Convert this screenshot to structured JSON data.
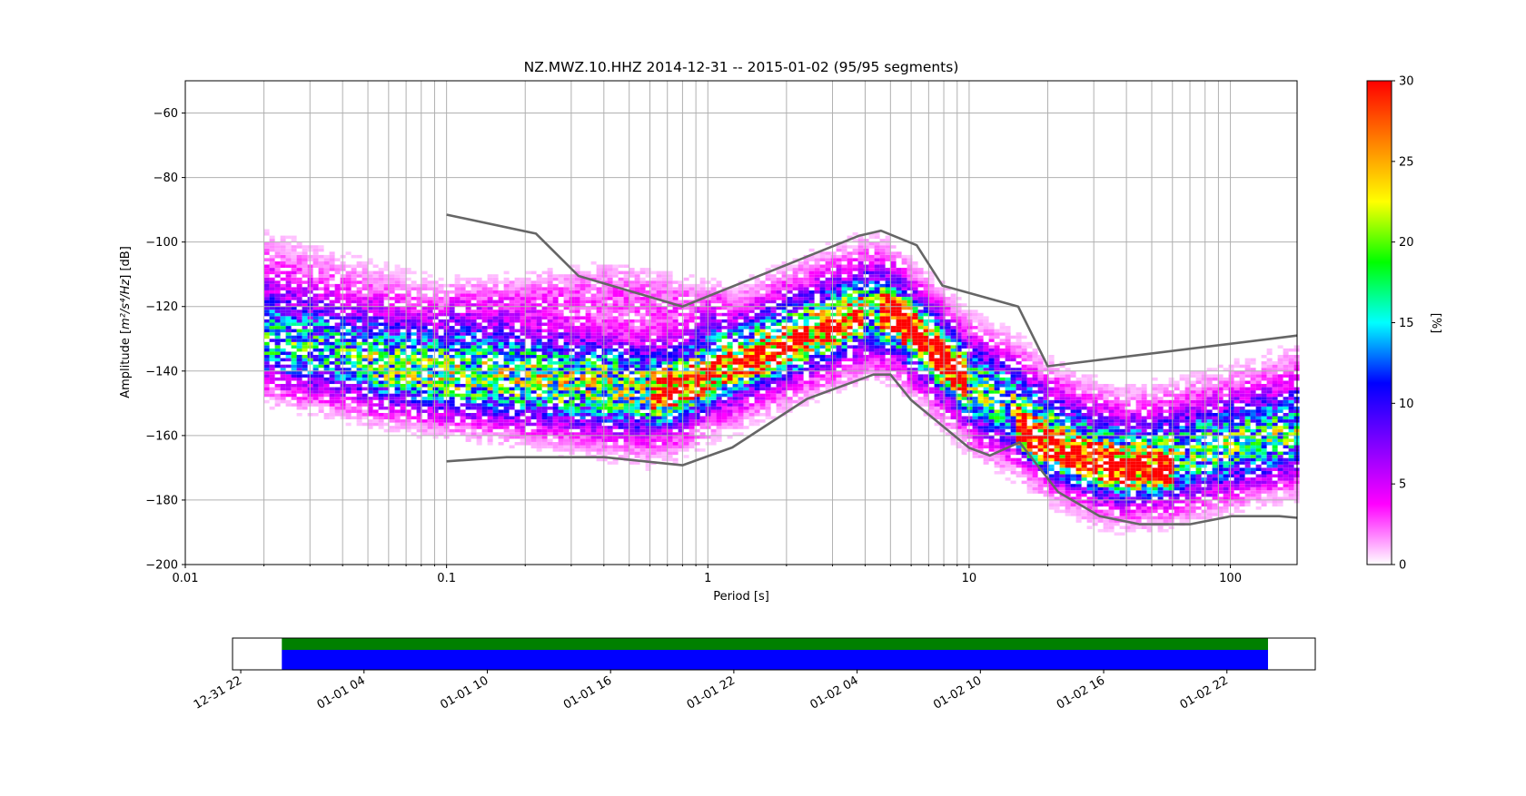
{
  "chart_data": [
    {
      "type": "heatmap",
      "title": "NZ.MWZ.10.HHZ   2014-12-31 -- 2015-01-02  (95/95 segments)",
      "xlabel": "Period [s]",
      "ylabel_prefix": "Amplitude [",
      "ylabel_unit": "m²/s⁴/Hz",
      "ylabel_suffix": "] [dB]",
      "xscale": "log",
      "xlim": [
        0.01,
        180
      ],
      "ylim": [
        -200,
        -50
      ],
      "grid": true,
      "x_ticks": [
        0.01,
        0.1,
        1,
        10,
        100
      ],
      "x_tick_labels": [
        "0.01",
        "0.1",
        "1",
        "10",
        "100"
      ],
      "y_ticks": [
        -200,
        -180,
        -160,
        -140,
        -120,
        -100,
        -80,
        -60
      ],
      "y_tick_labels": [
        "−200",
        "−180",
        "−160",
        "−140",
        "−120",
        "−100",
        "−80",
        "−60"
      ],
      "colorbar": {
        "label": "[%]",
        "range": [
          0,
          30
        ],
        "ticks": [
          0,
          5,
          10,
          15,
          20,
          25,
          30
        ],
        "tick_labels": [
          "0",
          "5",
          "10",
          "15",
          "20",
          "25",
          "30"
        ],
        "colormap": [
          "#ffffff",
          "#ff00ff",
          "#8000ff",
          "#0000ff",
          "#00ffff",
          "#00ff00",
          "#ffff00",
          "#ff8000",
          "#ff0000"
        ]
      },
      "noise_models": [
        {
          "name": "high-noise-model",
          "x": [
            0.1,
            0.22,
            0.32,
            0.8,
            3.8,
            4.6,
            6.3,
            7.9,
            15.4,
            20,
            180
          ],
          "y": [
            -91.5,
            -97.4,
            -110.5,
            -120,
            -98,
            -96.5,
            -101,
            -113.5,
            -120,
            -138.5,
            -129
          ]
        },
        {
          "name": "low-noise-model",
          "x": [
            0.1,
            0.17,
            0.4,
            0.8,
            1.24,
            2.4,
            4.3,
            5,
            6,
            10,
            12,
            15.6,
            21.9,
            31.6,
            45,
            70,
            101,
            154,
            180
          ],
          "y": [
            -168,
            -166.7,
            -166.7,
            -169.2,
            -163.7,
            -148.6,
            -141.1,
            -141.1,
            -149,
            -163.8,
            -166.2,
            -162.1,
            -177.5,
            -185,
            -187.5,
            -187.5,
            -185,
            -185,
            -185.5
          ]
        }
      ],
      "density_bands": [
        {
          "x": [
            0.02,
            0.05,
            0.1,
            0.2,
            0.4,
            0.6,
            0.8,
            1,
            1.5,
            2,
            3,
            4,
            5,
            6,
            8,
            10,
            15,
            20,
            30,
            40,
            60,
            100,
            180
          ],
          "y": [
            -132,
            -138,
            -141,
            -142,
            -143,
            -145,
            -144,
            -140,
            -135,
            -131,
            -126,
            -122,
            -123,
            -128,
            -137,
            -145,
            -152,
            -160,
            -167,
            -169,
            -168,
            -164,
            -160
          ],
          "width": 8,
          "peak": 13
        },
        {
          "x": [
            0.02,
            0.05,
            0.1,
            0.2,
            0.4,
            0.6,
            0.8,
            1,
            1.5,
            2,
            3,
            4,
            5,
            6,
            8,
            10,
            15,
            20,
            30,
            40,
            60,
            100,
            180
          ],
          "y": [
            -118,
            -128,
            -134,
            -140,
            -146,
            -148,
            -146,
            -141,
            -134,
            -129,
            -123,
            -120,
            -122,
            -127,
            -136,
            -144,
            -151,
            -159,
            -165,
            -167,
            -165,
            -160,
            -154
          ],
          "width": 11,
          "peak": 5
        },
        {
          "x": [
            0.1,
            0.2,
            0.4,
            0.8,
            1.2
          ],
          "y": [
            -125,
            -120,
            -116,
            -120,
            -125
          ],
          "width": 6,
          "peak": 2.5
        },
        {
          "x": [
            0.05,
            0.1,
            0.2,
            0.4,
            0.6,
            0.8
          ],
          "y": [
            -142,
            -146,
            -149,
            -151,
            -150,
            -148
          ],
          "width": 6,
          "peak": 3
        },
        {
          "x": [
            0.6,
            0.8,
            1,
            1.5,
            2,
            3,
            4
          ],
          "y": [
            -148,
            -146,
            -142,
            -137,
            -133,
            -127,
            -123
          ],
          "width": 4,
          "peak": 14
        },
        {
          "x": [
            4.5,
            5,
            6,
            7,
            8,
            10
          ],
          "y": [
            -121,
            -123,
            -127,
            -133,
            -138,
            -144
          ],
          "width": 4,
          "peak": 24
        },
        {
          "x": [
            15,
            20,
            30,
            40,
            50,
            60
          ],
          "y": [
            -158,
            -164,
            -169,
            -171,
            -171,
            -170
          ],
          "width": 4,
          "peak": 20
        }
      ]
    },
    {
      "type": "timeline",
      "x_tick_labels": [
        "12-31 22",
        "01-01 04",
        "01-01 10",
        "01-01 16",
        "01-01 22",
        "01-02 04",
        "01-02 10",
        "01-02 16",
        "01-02 22"
      ],
      "x_tick_hours": [
        -2,
        4,
        10,
        16,
        22,
        28,
        34,
        40,
        46
      ],
      "xlim_hours": [
        -2.4,
        50.3
      ],
      "coverage_hours": [
        0,
        48
      ],
      "bars": [
        {
          "name": "data-coverage",
          "color": "#008000"
        },
        {
          "name": "psd-segments",
          "color": "#0000ff"
        }
      ]
    }
  ]
}
